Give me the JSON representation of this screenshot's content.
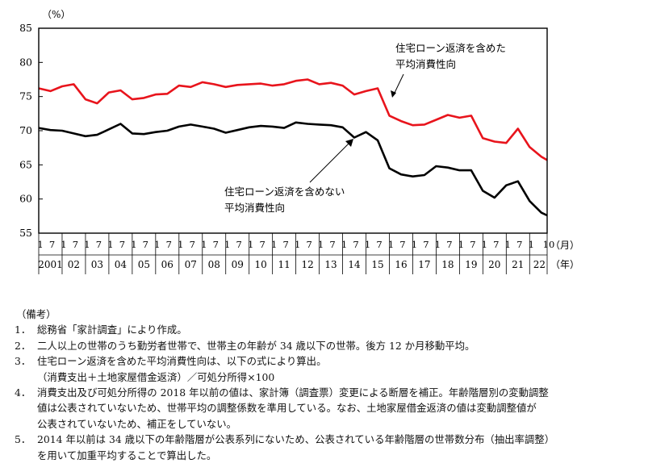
{
  "chart_data": {
    "type": "line",
    "y_unit": "（%）",
    "ylim": [
      55,
      85
    ],
    "y_ticks": [
      "85",
      "80",
      "75",
      "70",
      "65",
      "60",
      "55"
    ],
    "x_month_unit": "（月）",
    "x_year_unit": "（年）",
    "x_month_ticks": [
      "1",
      "7",
      "1",
      "7",
      "1",
      "7",
      "1",
      "7",
      "1",
      "7",
      "1",
      "7",
      "1",
      "7",
      "1",
      "7",
      "1",
      "7",
      "1",
      "7",
      "1",
      "7",
      "1",
      "7",
      "1",
      "7",
      "1",
      "7",
      "1",
      "7",
      "1",
      "7",
      "1",
      "7",
      "1",
      "7",
      "1",
      "7",
      "1",
      "7",
      "1",
      "7",
      "1",
      "10"
    ],
    "x_year_labels": [
      "2001",
      "02",
      "03",
      "04",
      "05",
      "06",
      "07",
      "08",
      "09",
      "10",
      "11",
      "12",
      "13",
      "14",
      "15",
      "16",
      "17",
      "18",
      "19",
      "20",
      "21",
      "22"
    ],
    "x_range": [
      "2001-01",
      "2022-10"
    ],
    "series": [
      {
        "name": "住宅ローン返済を含めた平均消費性向",
        "label_lines": [
          "住宅ローン返済を含めた",
          "平均消費性向"
        ],
        "color": "#e8141c",
        "points": [
          [
            "2001-01",
            76.2
          ],
          [
            "2001-07",
            75.8
          ],
          [
            "2002-01",
            76.5
          ],
          [
            "2002-07",
            76.8
          ],
          [
            "2003-01",
            74.6
          ],
          [
            "2003-07",
            74.0
          ],
          [
            "2004-01",
            75.6
          ],
          [
            "2004-07",
            75.9
          ],
          [
            "2005-01",
            74.6
          ],
          [
            "2005-07",
            74.8
          ],
          [
            "2006-01",
            75.3
          ],
          [
            "2006-07",
            75.4
          ],
          [
            "2007-01",
            76.6
          ],
          [
            "2007-07",
            76.4
          ],
          [
            "2008-01",
            77.1
          ],
          [
            "2008-07",
            76.8
          ],
          [
            "2009-01",
            76.4
          ],
          [
            "2009-07",
            76.7
          ],
          [
            "2010-01",
            76.8
          ],
          [
            "2010-07",
            76.9
          ],
          [
            "2011-01",
            76.6
          ],
          [
            "2011-07",
            76.8
          ],
          [
            "2012-01",
            77.3
          ],
          [
            "2012-07",
            77.5
          ],
          [
            "2013-01",
            76.8
          ],
          [
            "2013-07",
            77.0
          ],
          [
            "2014-01",
            76.6
          ],
          [
            "2014-07",
            75.3
          ],
          [
            "2015-01",
            75.8
          ],
          [
            "2015-07",
            76.2
          ],
          [
            "2016-01",
            72.2
          ],
          [
            "2016-07",
            71.4
          ],
          [
            "2017-01",
            70.8
          ],
          [
            "2017-07",
            70.9
          ],
          [
            "2018-01",
            71.6
          ],
          [
            "2018-07",
            72.3
          ],
          [
            "2019-01",
            71.9
          ],
          [
            "2019-07",
            72.2
          ],
          [
            "2020-01",
            68.9
          ],
          [
            "2020-07",
            68.4
          ],
          [
            "2021-01",
            68.2
          ],
          [
            "2021-07",
            70.3
          ],
          [
            "2022-01",
            67.6
          ],
          [
            "2022-07",
            66.2
          ],
          [
            "2022-10",
            65.7
          ]
        ]
      },
      {
        "name": "住宅ローン返済を含めない平均消費性向",
        "label_lines": [
          "住宅ローン返済を含めない",
          "平均消費性向"
        ],
        "color": "#000000",
        "points": [
          [
            "2001-01",
            70.4
          ],
          [
            "2001-07",
            70.1
          ],
          [
            "2002-01",
            70.0
          ],
          [
            "2002-07",
            69.6
          ],
          [
            "2003-01",
            69.2
          ],
          [
            "2003-07",
            69.4
          ],
          [
            "2004-01",
            70.2
          ],
          [
            "2004-07",
            71.0
          ],
          [
            "2005-01",
            69.6
          ],
          [
            "2005-07",
            69.5
          ],
          [
            "2006-01",
            69.8
          ],
          [
            "2006-07",
            70.0
          ],
          [
            "2007-01",
            70.6
          ],
          [
            "2007-07",
            70.9
          ],
          [
            "2008-01",
            70.6
          ],
          [
            "2008-07",
            70.3
          ],
          [
            "2009-01",
            69.7
          ],
          [
            "2009-07",
            70.1
          ],
          [
            "2010-01",
            70.5
          ],
          [
            "2010-07",
            70.7
          ],
          [
            "2011-01",
            70.6
          ],
          [
            "2011-07",
            70.4
          ],
          [
            "2012-01",
            71.2
          ],
          [
            "2012-07",
            71.0
          ],
          [
            "2013-01",
            70.9
          ],
          [
            "2013-07",
            70.8
          ],
          [
            "2014-01",
            70.5
          ],
          [
            "2014-07",
            69.0
          ],
          [
            "2015-01",
            69.8
          ],
          [
            "2015-07",
            68.6
          ],
          [
            "2016-01",
            64.5
          ],
          [
            "2016-07",
            63.6
          ],
          [
            "2017-01",
            63.3
          ],
          [
            "2017-07",
            63.5
          ],
          [
            "2018-01",
            64.8
          ],
          [
            "2018-07",
            64.6
          ],
          [
            "2019-01",
            64.2
          ],
          [
            "2019-07",
            64.2
          ],
          [
            "2020-01",
            61.2
          ],
          [
            "2020-07",
            60.2
          ],
          [
            "2021-01",
            62.0
          ],
          [
            "2021-07",
            62.6
          ],
          [
            "2022-01",
            59.7
          ],
          [
            "2022-07",
            58.0
          ],
          [
            "2022-10",
            57.6
          ]
        ]
      }
    ]
  },
  "notes": {
    "heading": "（備考）",
    "items": [
      {
        "num": "1．",
        "lines": [
          "総務省「家計調査」により作成。"
        ]
      },
      {
        "num": "2．",
        "lines": [
          "二人以上の世帯のうち勤労者世帯で、世帯主の年齢が 34 歳以下の世帯。後方 12 か月移動平均。"
        ]
      },
      {
        "num": "3．",
        "lines": [
          "住宅ローン返済を含めた平均消費性向は、以下の式により算出。",
          "（消費支出＋土地家屋借金返済）／可処分所得×100"
        ]
      },
      {
        "num": "4．",
        "lines": [
          "消費支出及び可処分所得の 2018 年以前の値は、家計簿（調査票）変更による断層を補正。年齢階層別の変動調整",
          "値は公表されていないため、世帯平均の調整係数を準用している。なお、土地家屋借金返済の値は変動調整値が",
          "公表されていないため、補正をしていない。"
        ]
      },
      {
        "num": "5．",
        "lines": [
          "2014 年以前は 34 歳以下の年齢階層が公表系列にないため、公表されている年齢階層の世帯数分布（抽出率調整）",
          "を用いて加重平均することで算出した。"
        ]
      }
    ]
  }
}
